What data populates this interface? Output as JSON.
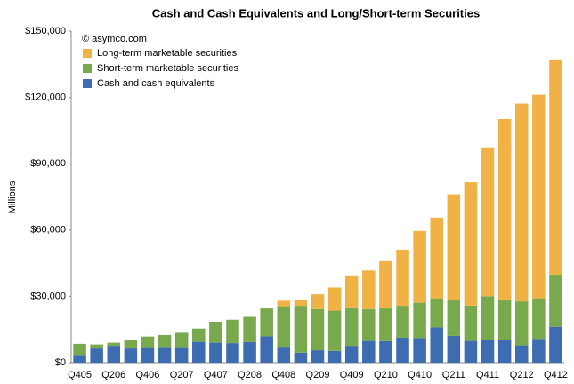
{
  "chart_data": {
    "type": "stacked_bar",
    "title": "Cash and Cash Equivalents and Long/Short-term Securities",
    "annotation": "© asymco.com",
    "y_label": "Millions",
    "categories": [
      "Q405",
      null,
      "Q206",
      null,
      "Q406",
      null,
      "Q207",
      null,
      "Q407",
      null,
      "Q208",
      null,
      "Q408",
      null,
      "Q209",
      null,
      "Q409",
      null,
      "Q210",
      null,
      "Q410",
      null,
      "Q211",
      null,
      "Q411",
      null,
      "Q212",
      null,
      "Q412"
    ],
    "series": [
      {
        "name": "Cash and cash equivalents",
        "color": "#3d6cb0",
        "values": [
          3500,
          6400,
          7600,
          6400,
          7000,
          7100,
          7000,
          9400,
          9000,
          8800,
          9300,
          11900,
          7200,
          4500,
          5600,
          5300,
          7600,
          9800,
          9700,
          11300,
          11100,
          15900,
          12100,
          9800,
          10300,
          10300,
          7800,
          10700,
          16200
        ]
      },
      {
        "name": "Short-term marketable securities",
        "color": "#78a94c",
        "values": [
          5000,
          1800,
          1400,
          3800,
          4800,
          5400,
          6500,
          6000,
          9500,
          10600,
          11400,
          12600,
          18300,
          21200,
          18600,
          18200,
          17400,
          14400,
          14800,
          14400,
          16000,
          13200,
          16200,
          16000,
          19700,
          18300,
          19900,
          18400,
          23600
        ]
      },
      {
        "name": "Long-term marketable securities",
        "color": "#f0b245",
        "values": [
          0,
          0,
          0,
          0,
          0,
          0,
          0,
          0,
          0,
          0,
          0,
          0,
          2500,
          2700,
          6700,
          10500,
          14500,
          17500,
          21400,
          25400,
          32500,
          36500,
          47900,
          55800,
          67400,
          81600,
          89500,
          92100,
          97400
        ]
      }
    ],
    "ylim": [
      0,
      150000
    ],
    "yticks": [
      {
        "value": 0,
        "label": "$0"
      },
      {
        "value": 30000,
        "label": "$30,000"
      },
      {
        "value": 60000,
        "label": "$60,000"
      },
      {
        "value": 90000,
        "label": "$90,000"
      },
      {
        "value": 120000,
        "label": "$120,000"
      },
      {
        "value": 150000,
        "label": "$150,000"
      }
    ],
    "legend": "top-left"
  }
}
